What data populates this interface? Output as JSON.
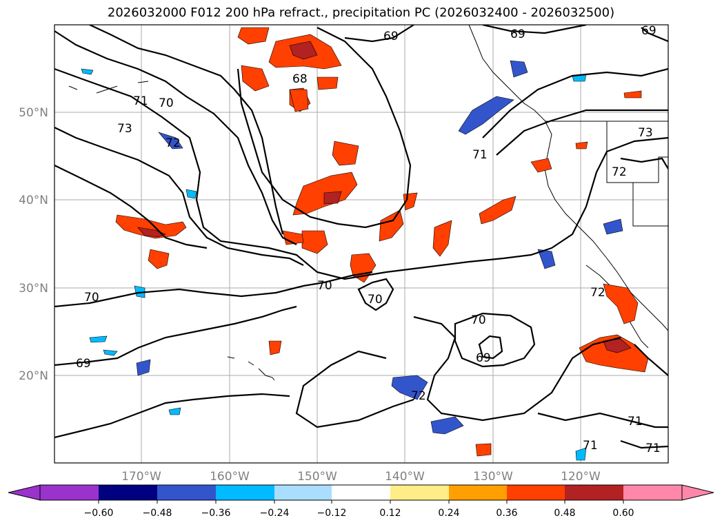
{
  "title": "2026032000 F012 200 hPa refract., precipitation PC (2026032400 - 2026032500)",
  "map": {
    "lat_labels": [
      "50°N",
      "40°N",
      "30°N",
      "20°N"
    ],
    "lon_labels": [
      "170°W",
      "160°W",
      "150°W",
      "140°W",
      "130°W",
      "120°W"
    ],
    "contour_labels": [
      "69",
      "69",
      "69",
      "68",
      "70",
      "71",
      "72",
      "73",
      "71",
      "72",
      "73",
      "70",
      "70",
      "70",
      "70",
      "69",
      "69",
      "72",
      "71",
      "71",
      "71",
      "72"
    ]
  },
  "colorbar": {
    "tick_labels": [
      "−0.60",
      "−0.48",
      "−0.36",
      "−0.24",
      "−0.12",
      "0.12",
      "0.24",
      "0.36",
      "0.48",
      "0.60"
    ],
    "colors": [
      "#9933cc",
      "#000080",
      "#3355cc",
      "#00bbff",
      "#aadeff",
      "#ffffff",
      "#ffee88",
      "#ffa000",
      "#ff4000",
      "#b22222",
      "#ff88aa",
      "#ff88aa"
    ]
  }
}
